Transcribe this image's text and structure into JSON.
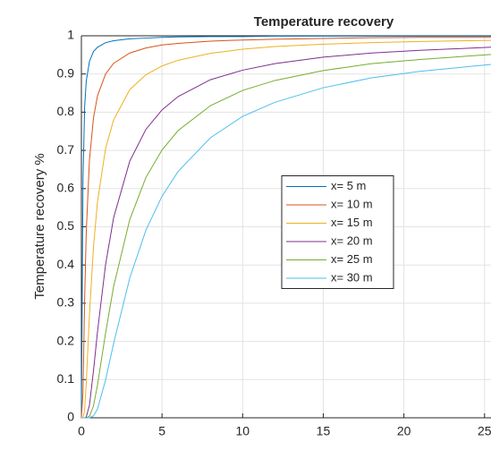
{
  "chart_data": {
    "type": "line",
    "title": "Temperature recovery",
    "y_label": "Temperature recovery %",
    "x": [
      0,
      0.1,
      0.2,
      0.3,
      0.5,
      0.75,
      1,
      1.5,
      2,
      3,
      4,
      5,
      6,
      8,
      10,
      12,
      15,
      18,
      21,
      25.4
    ],
    "series": [
      {
        "name": "x= 5 m",
        "color": "#0072BD",
        "values": [
          0,
          0.622,
          0.813,
          0.881,
          0.933,
          0.959,
          0.97,
          0.982,
          0.987,
          0.992,
          0.994,
          0.996,
          0.997,
          0.998,
          0.998,
          0.999,
          0.999,
          0.999,
          0.999,
          0.999
        ]
      },
      {
        "name": "x= 10 m",
        "color": "#D95319",
        "values": [
          0,
          0.066,
          0.307,
          0.484,
          0.675,
          0.785,
          0.843,
          0.9,
          0.928,
          0.955,
          0.968,
          0.976,
          0.98,
          0.986,
          0.989,
          0.991,
          0.993,
          0.995,
          0.996,
          0.996
        ]
      },
      {
        "name": "x= 15 m",
        "color": "#EDB120",
        "values": [
          0,
          0,
          0.02,
          0.089,
          0.27,
          0.447,
          0.566,
          0.705,
          0.78,
          0.859,
          0.898,
          0.921,
          0.936,
          0.954,
          0.965,
          0.972,
          0.978,
          0.982,
          0.985,
          0.988
        ]
      },
      {
        "name": "x= 20 m",
        "color": "#7E2F8E",
        "values": [
          0,
          0,
          0,
          0.002,
          0.033,
          0.123,
          0.226,
          0.401,
          0.524,
          0.672,
          0.755,
          0.806,
          0.841,
          0.885,
          0.91,
          0.927,
          0.944,
          0.955,
          0.962,
          0.97
        ]
      },
      {
        "name": "x= 25 m",
        "color": "#77AC30",
        "values": [
          0,
          0,
          0,
          0,
          0.004,
          0.031,
          0.086,
          0.222,
          0.344,
          0.519,
          0.629,
          0.701,
          0.752,
          0.817,
          0.857,
          0.883,
          0.909,
          0.927,
          0.938,
          0.951
        ]
      },
      {
        "name": "x= 30 m",
        "color": "#4DBEEE",
        "values": [
          0,
          0,
          0,
          0,
          0,
          0.005,
          0.023,
          0.099,
          0.195,
          0.366,
          0.491,
          0.58,
          0.645,
          0.733,
          0.789,
          0.826,
          0.864,
          0.89,
          0.907,
          0.925
        ]
      }
    ],
    "xlim": [
      0,
      25.4
    ],
    "xticks": [
      0,
      5,
      10,
      15,
      20,
      25
    ],
    "ylim": [
      0,
      1
    ],
    "yticks": [
      0,
      0.1,
      0.2,
      0.3,
      0.4,
      0.5,
      0.6,
      0.7,
      0.8,
      0.9,
      1
    ],
    "grid": true,
    "legend": "east"
  }
}
